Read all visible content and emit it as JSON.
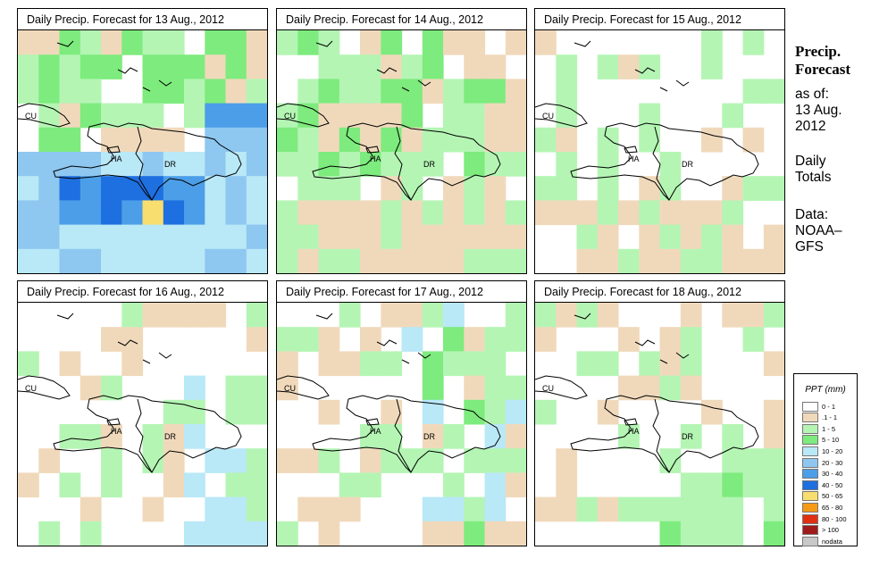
{
  "panels": [
    {
      "title": "Daily Precip. Forecast for  13 Aug., 2012",
      "pattern": "p0"
    },
    {
      "title": "Daily Precip. Forecast for  14 Aug., 2012",
      "pattern": "p1"
    },
    {
      "title": "Daily Precip. Forecast for  15 Aug., 2012",
      "pattern": "p2"
    },
    {
      "title": "Daily Precip. Forecast for  16 Aug., 2012",
      "pattern": "p3"
    },
    {
      "title": "Daily Precip. Forecast for  17 Aug., 2012",
      "pattern": "p4"
    },
    {
      "title": "Daily Precip. Forecast for  18 Aug., 2012",
      "pattern": "p5"
    }
  ],
  "labels": {
    "cuba": "CU",
    "haiti": "HA",
    "dominican_republic": "DR"
  },
  "side": {
    "title_line1": "Precip.",
    "title_line2": "Forecast",
    "asof": "as of:",
    "date_line1": "13 Aug.",
    "date_line2": "2012",
    "totals_line1": "Daily",
    "totals_line2": "Totals",
    "data_line1": "Data:",
    "data_line2": "NOAA–",
    "data_line3": "GFS"
  },
  "legend": {
    "title": "PPT (mm)",
    "items": [
      {
        "label": "0 - 1",
        "color": "#ffffff"
      },
      {
        "label": ".1 - 1",
        "color": "#f0d9bb"
      },
      {
        "label": "1 - 5",
        "color": "#b4f5b4"
      },
      {
        "label": "5 - 10",
        "color": "#7deb7d"
      },
      {
        "label": "10 - 20",
        "color": "#b9e8f7"
      },
      {
        "label": "20 - 30",
        "color": "#8ec7f0"
      },
      {
        "label": "30 - 40",
        "color": "#4c9ee8"
      },
      {
        "label": "40 - 50",
        "color": "#1e6fe0"
      },
      {
        "label": "50 - 65",
        "color": "#f7de6e"
      },
      {
        "label": "65 - 80",
        "color": "#f59a14"
      },
      {
        "label": "80 - 100",
        "color": "#e03010"
      },
      {
        "label": "> 100",
        "color": "#a01a1a"
      },
      {
        "label": "nodata",
        "color": "#c8c8c8"
      }
    ]
  },
  "colors": {
    "white": "#ffffff",
    "tan": "#f0d9bb",
    "lg": "#b4f5b4",
    "g": "#7deb7d",
    "lb": "#b9e8f7",
    "b1": "#8ec7f0",
    "b2": "#4c9ee8",
    "b3": "#1e6fe0",
    "y": "#f7de6e"
  }
}
